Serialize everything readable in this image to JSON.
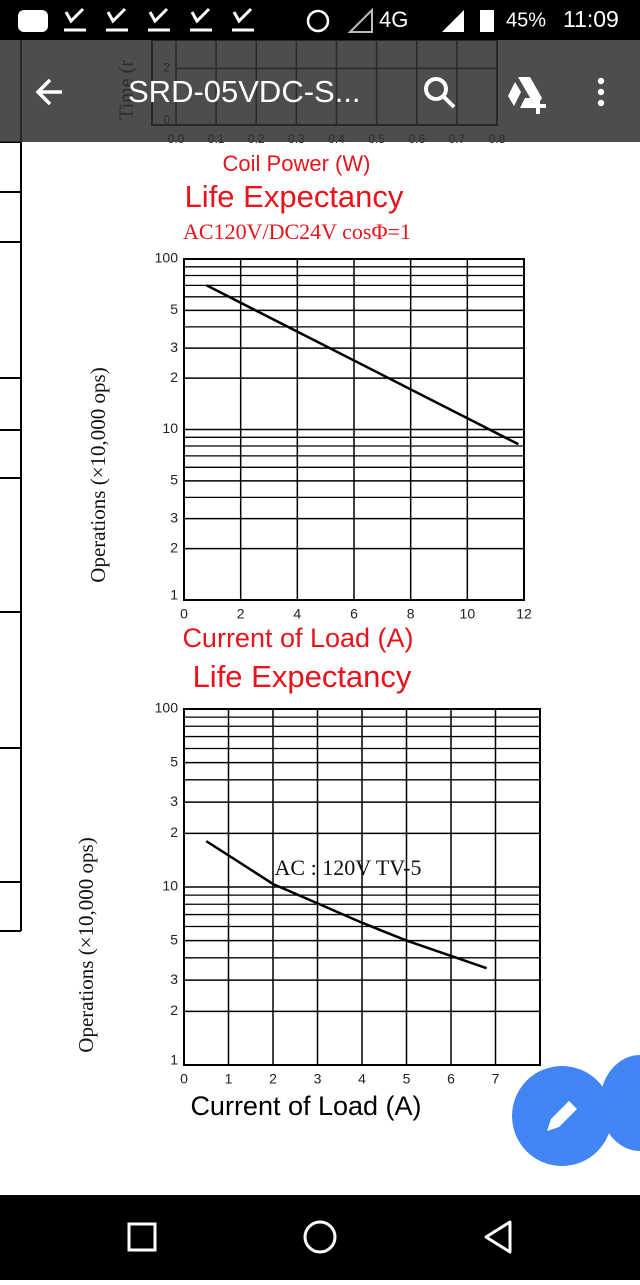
{
  "status_bar": {
    "network": "4G",
    "battery": "45%",
    "time": "11:09"
  },
  "app_bar": {
    "title": "SRD-05VDC-S..."
  },
  "chart_data": [
    {
      "type": "line",
      "y_label": "Time (r",
      "x_label": "Coil Power (W)",
      "label_color": "#e8141c",
      "xlim": [
        0,
        0.8
      ],
      "xticks": [
        {
          "value": 0,
          "label": "0.0"
        },
        0.1,
        0.2,
        0.3,
        0.4,
        0.5,
        0.6,
        0.7,
        0.8
      ],
      "ylim": [
        0,
        3
      ],
      "yticks": [
        0,
        2
      ],
      "grid": true
    },
    {
      "type": "line",
      "title": "Life Expectancy",
      "subtitle": "AC120V/DC24V cosΦ=1",
      "y_label": "Operations (×10,000 ops)",
      "x_label": "Current of Load (A)",
      "title_color": "#e8141c",
      "label_color": "#e8141c",
      "color": "#000000",
      "x": [
        0.8,
        4,
        8,
        11.8
      ],
      "values": [
        70,
        37.5,
        17.2,
        8.2
      ],
      "xlim": [
        0,
        12
      ],
      "xticks": [
        0,
        2,
        4,
        6,
        8,
        10,
        12
      ],
      "ylim": [
        1,
        100
      ],
      "log_y": true,
      "grid": true,
      "yticks": [
        1,
        2,
        3,
        5,
        10,
        {
          "value": 20,
          "label": "2"
        },
        {
          "value": 30,
          "label": "3"
        },
        {
          "value": 50,
          "label": "5"
        },
        100
      ],
      "yminor": [
        4,
        6,
        7,
        8,
        9,
        40,
        60,
        70,
        80,
        90
      ]
    },
    {
      "type": "line",
      "title": "Life Expectancy",
      "y_label": "Operations (×10,000 ops)",
      "x_label": "Current of Load (A)",
      "title_color": "#e8141c",
      "label_color": "#000000",
      "color": "#000000",
      "annotation": "AC : 120V TV-5",
      "x": [
        0.5,
        2,
        4,
        5,
        6.8
      ],
      "values": [
        18.1,
        10.4,
        6.3,
        5.0,
        3.5
      ],
      "xlim": [
        0,
        8
      ],
      "xticks": [
        0,
        1,
        2,
        3,
        4,
        5,
        6,
        7
      ],
      "ylim": [
        1,
        100
      ],
      "log_y": true,
      "grid": true,
      "yticks": [
        1,
        2,
        3,
        5,
        10,
        {
          "value": 20,
          "label": "2"
        },
        {
          "value": 30,
          "label": "3"
        },
        {
          "value": 50,
          "label": "5"
        },
        100
      ],
      "yminor": [
        4,
        6,
        7,
        8,
        9,
        40,
        60,
        70,
        80,
        90
      ]
    }
  ]
}
